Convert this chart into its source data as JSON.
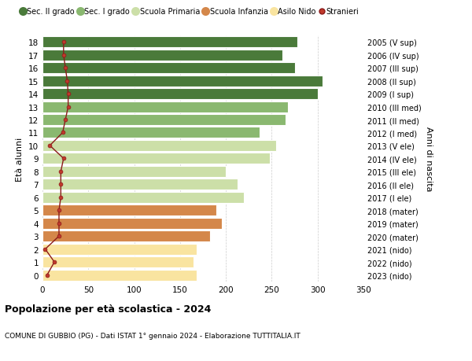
{
  "ages": [
    0,
    1,
    2,
    3,
    4,
    5,
    6,
    7,
    8,
    9,
    10,
    11,
    12,
    13,
    14,
    15,
    16,
    17,
    18
  ],
  "anni_nascita": [
    "2023 (nido)",
    "2022 (nido)",
    "2021 (nido)",
    "2020 (mater)",
    "2019 (mater)",
    "2018 (mater)",
    "2017 (I ele)",
    "2016 (II ele)",
    "2015 (III ele)",
    "2014 (IV ele)",
    "2013 (V ele)",
    "2012 (I med)",
    "2011 (II med)",
    "2010 (III med)",
    "2009 (I sup)",
    "2008 (II sup)",
    "2007 (III sup)",
    "2006 (IV sup)",
    "2005 (V sup)"
  ],
  "bar_values": [
    168,
    165,
    168,
    183,
    196,
    190,
    220,
    213,
    200,
    248,
    255,
    237,
    265,
    268,
    300,
    305,
    275,
    262,
    278
  ],
  "stranieri": [
    5,
    13,
    3,
    18,
    18,
    18,
    20,
    20,
    20,
    23,
    8,
    22,
    25,
    28,
    28,
    27,
    25,
    23,
    23
  ],
  "bar_colors": [
    "#f9e4a0",
    "#f9e4a0",
    "#f9e4a0",
    "#d4874a",
    "#d4874a",
    "#d4874a",
    "#ccdfa8",
    "#ccdfa8",
    "#ccdfa8",
    "#ccdfa8",
    "#ccdfa8",
    "#8ab870",
    "#8ab870",
    "#8ab870",
    "#4a7a3a",
    "#4a7a3a",
    "#4a7a3a",
    "#4a7a3a",
    "#4a7a3a"
  ],
  "legend_colors": [
    "#4a7a3a",
    "#8ab870",
    "#ccdfa8",
    "#d4874a",
    "#f9e4a0",
    "#c0392b"
  ],
  "legend_labels": [
    "Sec. II grado",
    "Sec. I grado",
    "Scuola Primaria",
    "Scuola Infanzia",
    "Asilo Nido",
    "Stranieri"
  ],
  "xlim": [
    0,
    350
  ],
  "ylabel": "Età alunni",
  "ylabel_right": "Anni di nascita",
  "title": "Popolazione per età scolastica - 2024",
  "subtitle": "COMUNE DI GUBBIO (PG) - Dati ISTAT 1° gennaio 2024 - Elaborazione TUTTITALIA.IT",
  "bg_color": "#ffffff",
  "grid_color": "#cccccc",
  "bar_height": 0.85
}
